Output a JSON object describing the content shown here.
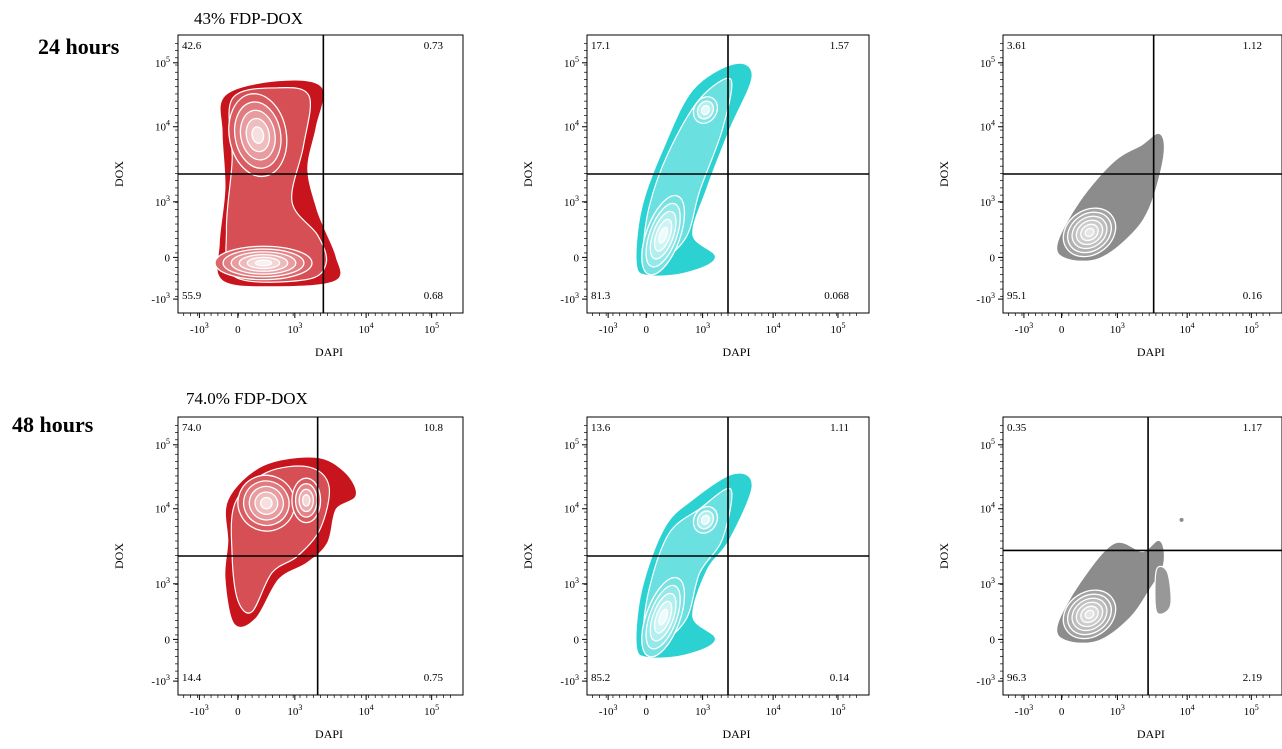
{
  "rows": [
    {
      "label": "24 hours",
      "title": "43% FDP-DOX"
    },
    {
      "label": "48 hours",
      "title": "74.0% FDP-DOX"
    }
  ],
  "chart_data": [
    {
      "type": "contour",
      "row": 0,
      "col": 0,
      "color": "#c8141c",
      "xlabel": "DAPI",
      "ylabel": "DOX",
      "quadrants": {
        "upper_left": "42.6",
        "upper_right": "0.73",
        "lower_left": "55.9",
        "lower_right": "0.68"
      }
    },
    {
      "type": "contour",
      "row": 0,
      "col": 1,
      "color": "#2cd2d2",
      "xlabel": "DAPI",
      "ylabel": "DOX",
      "quadrants": {
        "upper_left": "17.1",
        "upper_right": "1.57",
        "lower_left": "81.3",
        "lower_right": "0.068"
      }
    },
    {
      "type": "contour",
      "row": 0,
      "col": 2,
      "color": "#8c8c8c",
      "xlabel": "DAPI",
      "ylabel": "DOX",
      "quadrants": {
        "upper_left": "3.61",
        "upper_right": "1.12",
        "lower_left": "95.1",
        "lower_right": "0.16"
      }
    },
    {
      "type": "contour",
      "row": 1,
      "col": 0,
      "color": "#c8141c",
      "xlabel": "DAPI",
      "ylabel": "DOX",
      "quadrants": {
        "upper_left": "74.0",
        "upper_right": "10.8",
        "lower_left": "14.4",
        "lower_right": "0.75"
      }
    },
    {
      "type": "contour",
      "row": 1,
      "col": 1,
      "color": "#2cd2d2",
      "xlabel": "DAPI",
      "ylabel": "DOX",
      "quadrants": {
        "upper_left": "13.6",
        "upper_right": "1.11",
        "lower_left": "85.2",
        "lower_right": "0.14"
      }
    },
    {
      "type": "contour",
      "row": 1,
      "col": 2,
      "color": "#8c8c8c",
      "xlabel": "DAPI",
      "ylabel": "DOX",
      "quadrants": {
        "upper_left": "0.35",
        "upper_right": "1.17",
        "lower_left": "96.3",
        "lower_right": "2.19"
      }
    }
  ],
  "axis": {
    "x_ticks": [
      {
        "base": "-10",
        "exp": "3"
      },
      {
        "base": "0",
        "exp": ""
      },
      {
        "base": "10",
        "exp": "3"
      },
      {
        "base": "10",
        "exp": "4"
      },
      {
        "base": "10",
        "exp": "5"
      }
    ],
    "y_ticks": [
      {
        "base": "10",
        "exp": "5"
      },
      {
        "base": "10",
        "exp": "4"
      },
      {
        "base": "10",
        "exp": "3"
      },
      {
        "base": "0",
        "exp": ""
      },
      {
        "base": "-10",
        "exp": "3"
      }
    ]
  }
}
